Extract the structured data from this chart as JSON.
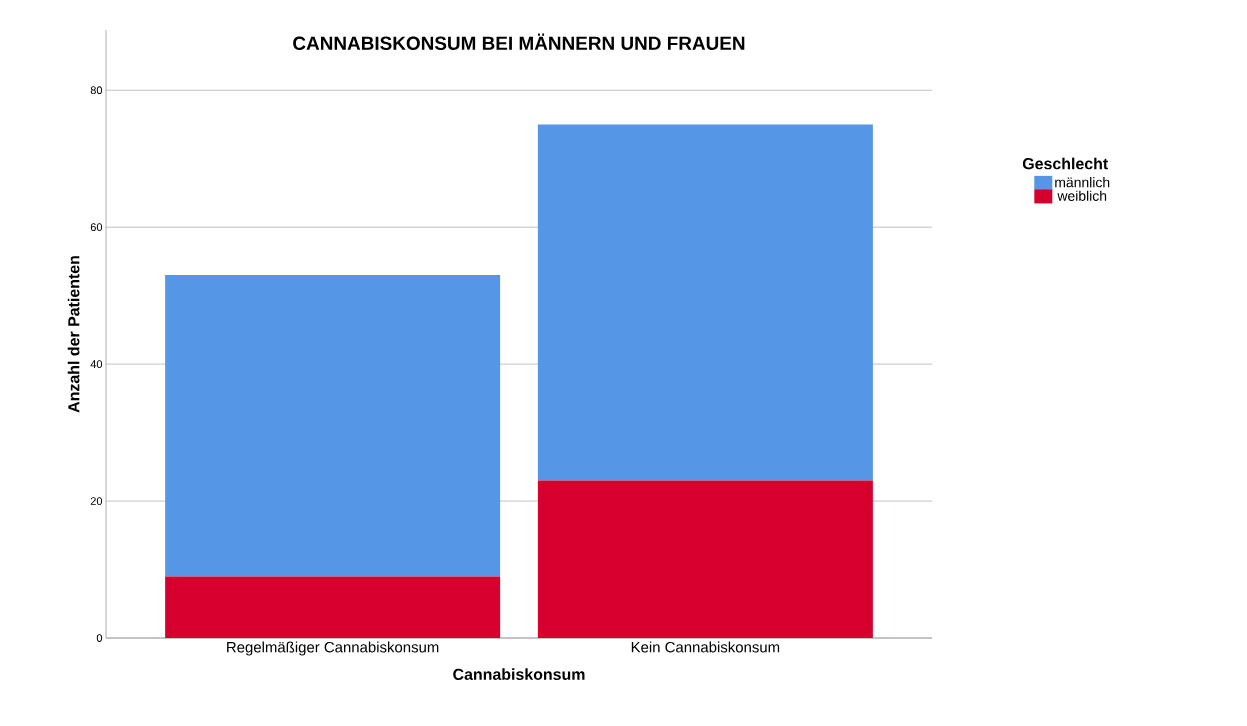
{
  "chart_data": {
    "type": "bar",
    "stacked": true,
    "title": "CANNABISKONSUM BEI MÄNNERN UND FRAUEN",
    "xlabel": "Cannabiskonsum",
    "ylabel": "Anzahl der Patienten",
    "legend_title": "Geschlecht",
    "categories": [
      "Regelmäßiger Cannabiskonsum",
      "Kein Cannabiskonsum"
    ],
    "series": [
      {
        "name": "weiblich",
        "color": "#d6002e",
        "values": [
          9,
          23
        ]
      },
      {
        "name": "männlich",
        "color": "#5596e6",
        "values": [
          44,
          52
        ]
      }
    ],
    "ylim": [
      0,
      88.8
    ],
    "yticks": [
      0,
      20,
      40,
      60,
      80
    ],
    "grid": "y",
    "legend": "right"
  }
}
